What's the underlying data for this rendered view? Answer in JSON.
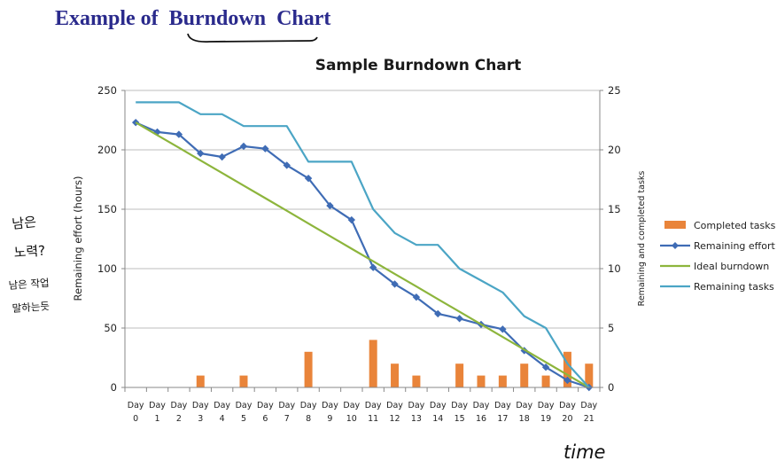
{
  "page": {
    "heading_prefix": "Example of",
    "heading_word": "Burndown",
    "heading_suffix": "Chart"
  },
  "annotations": {
    "left_note_line1": "남은",
    "left_note_line2": "노력?",
    "left_note_line3": "남은 작업",
    "left_note_line4": "말하는듯",
    "time_note": "time"
  },
  "chart_data": {
    "type": "bar",
    "title": "Sample Burndown Chart",
    "ylabel": "Remaining effort (hours)",
    "y2label": "Remaining and completed tasks",
    "ylim": [
      0,
      250
    ],
    "y2lim": [
      0,
      25
    ],
    "yticks": [
      0,
      50,
      100,
      150,
      200,
      250
    ],
    "y2ticks": [
      0,
      5,
      10,
      15,
      20,
      25
    ],
    "categories": [
      [
        "Day",
        "0"
      ],
      [
        "Day",
        "1"
      ],
      [
        "Day",
        "2"
      ],
      [
        "Day",
        "3"
      ],
      [
        "Day",
        "4"
      ],
      [
        "Day",
        "5"
      ],
      [
        "Day",
        "6"
      ],
      [
        "Day",
        "7"
      ],
      [
        "Day",
        "8"
      ],
      [
        "Day",
        "9"
      ],
      [
        "Day",
        "10"
      ],
      [
        "Day",
        "11"
      ],
      [
        "Day",
        "12"
      ],
      [
        "Day",
        "13"
      ],
      [
        "Day",
        "14"
      ],
      [
        "Day",
        "15"
      ],
      [
        "Day",
        "16"
      ],
      [
        "Day",
        "17"
      ],
      [
        "Day",
        "18"
      ],
      [
        "Day",
        "19"
      ],
      [
        "Day",
        "20"
      ],
      [
        "Day",
        "21"
      ]
    ],
    "grid": "horizontal",
    "legend_position": "right",
    "series": [
      {
        "name": "Completed tasks",
        "type": "bar",
        "axis": "right",
        "color": "#e9843a",
        "values": [
          0,
          0,
          0,
          1,
          0,
          1,
          0,
          0,
          3,
          0,
          0,
          4,
          2,
          1,
          0,
          2,
          1,
          1,
          2,
          1,
          3,
          2
        ]
      },
      {
        "name": "Remaining effort",
        "type": "line",
        "axis": "left",
        "color": "#3f6cb5",
        "marker": "diamond",
        "values": [
          223,
          215,
          213,
          197,
          194,
          203,
          201,
          187,
          176,
          153,
          141,
          101,
          87,
          76,
          62,
          58,
          53,
          49,
          31,
          17,
          6,
          0
        ]
      },
      {
        "name": "Ideal burndown",
        "type": "line",
        "axis": "left",
        "color": "#8db53c",
        "values": [
          223,
          212.4,
          201.8,
          191.1,
          180.5,
          169.9,
          159.3,
          148.7,
          138,
          127.4,
          116.8,
          106.2,
          95.6,
          85,
          74.3,
          63.7,
          53.1,
          42.5,
          31.9,
          21.2,
          10.6,
          0
        ]
      },
      {
        "name": "Remaining tasks",
        "type": "line",
        "axis": "right",
        "color": "#4ba5c5",
        "values": [
          24,
          24,
          24,
          23,
          23,
          22,
          22,
          22,
          19,
          19,
          19,
          15,
          13,
          12,
          12,
          10,
          9,
          8,
          6,
          5,
          2,
          0
        ]
      }
    ]
  }
}
